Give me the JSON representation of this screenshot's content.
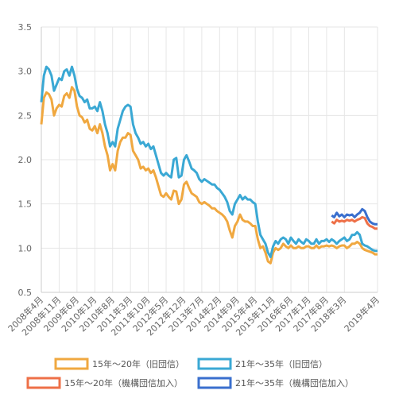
{
  "chart_data": {
    "type": "line",
    "categories": [
      "2008年4月",
      null,
      null,
      null,
      null,
      null,
      null,
      "2008年11月",
      null,
      null,
      null,
      null,
      null,
      null,
      "2009年6月",
      null,
      null,
      null,
      null,
      null,
      null,
      "2010年1月",
      null,
      null,
      null,
      null,
      null,
      null,
      "2010年8月",
      null,
      null,
      null,
      null,
      null,
      null,
      "2011年3月",
      null,
      null,
      null,
      null,
      null,
      null,
      "2011年10月",
      null,
      null,
      null,
      null,
      null,
      null,
      "2012年5月",
      null,
      null,
      null,
      null,
      null,
      null,
      "2012年12月",
      null,
      null,
      null,
      null,
      null,
      null,
      "2013年7月",
      null,
      null,
      null,
      null,
      null,
      null,
      "2014年2月",
      null,
      null,
      null,
      null,
      null,
      null,
      "2014年9月",
      null,
      null,
      null,
      null,
      null,
      null,
      "2015年4月",
      null,
      null,
      null,
      null,
      null,
      null,
      "2015年11月",
      null,
      null,
      null,
      null,
      null,
      null,
      "2016年6月",
      null,
      null,
      null,
      null,
      null,
      null,
      "2017年1月",
      null,
      null,
      null,
      null,
      null,
      null,
      "2017年8月",
      null,
      null,
      null,
      null,
      null,
      null,
      "2018年3月",
      null,
      null,
      null,
      null,
      null,
      null,
      null,
      null,
      null,
      null,
      null,
      null,
      "2019年4月"
    ],
    "series": [
      {
        "name": "15年～20年（旧団信）",
        "color": "#f0a840",
        "values": [
          2.4,
          2.7,
          2.76,
          2.74,
          2.68,
          2.5,
          2.58,
          2.62,
          2.6,
          2.72,
          2.75,
          2.7,
          2.82,
          2.78,
          2.6,
          2.5,
          2.48,
          2.42,
          2.45,
          2.35,
          2.33,
          2.38,
          2.3,
          2.4,
          2.3,
          2.15,
          2.05,
          1.88,
          1.95,
          1.88,
          2.1,
          2.2,
          2.25,
          2.25,
          2.3,
          2.28,
          2.1,
          2.05,
          2.0,
          1.9,
          1.92,
          1.88,
          1.9,
          1.85,
          1.88,
          1.8,
          1.7,
          1.6,
          1.58,
          1.62,
          1.58,
          1.55,
          1.65,
          1.64,
          1.5,
          1.55,
          1.72,
          1.75,
          1.68,
          1.62,
          1.6,
          1.58,
          1.52,
          1.5,
          1.52,
          1.5,
          1.48,
          1.45,
          1.45,
          1.42,
          1.4,
          1.38,
          1.35,
          1.3,
          1.2,
          1.12,
          1.25,
          1.3,
          1.38,
          1.32,
          1.3,
          1.3,
          1.28,
          1.25,
          1.25,
          1.1,
          1.0,
          1.02,
          0.95,
          0.85,
          0.83,
          0.95,
          1.0,
          0.98,
          1.0,
          1.05,
          1.02,
          1.0,
          1.03,
          1.0,
          1.0,
          1.02,
          1.0,
          1.0,
          1.02,
          1.02,
          1.0,
          1.0,
          1.03,
          1.0,
          1.02,
          1.02,
          1.03,
          1.02,
          1.03,
          1.02,
          1.0,
          1.02,
          1.03,
          1.03,
          1.0,
          1.02,
          1.05,
          1.05,
          1.07,
          1.05,
          1.0,
          0.98,
          0.97,
          0.96,
          0.95,
          0.93,
          0.93
        ]
      },
      {
        "name": "21年～35年（旧団信）",
        "color": "#3aa8d4",
        "values": [
          2.65,
          2.95,
          3.05,
          3.02,
          2.95,
          2.78,
          2.85,
          2.92,
          2.9,
          3.0,
          3.02,
          2.95,
          3.05,
          2.95,
          2.8,
          2.72,
          2.7,
          2.65,
          2.68,
          2.58,
          2.58,
          2.6,
          2.55,
          2.65,
          2.55,
          2.4,
          2.3,
          2.15,
          2.2,
          2.15,
          2.35,
          2.45,
          2.55,
          2.6,
          2.62,
          2.6,
          2.4,
          2.3,
          2.25,
          2.18,
          2.2,
          2.15,
          2.18,
          2.12,
          2.15,
          2.05,
          1.95,
          1.85,
          1.82,
          1.85,
          1.82,
          1.8,
          2.0,
          2.02,
          1.8,
          1.82,
          2.0,
          2.05,
          1.98,
          1.9,
          1.88,
          1.85,
          1.78,
          1.75,
          1.78,
          1.76,
          1.74,
          1.72,
          1.72,
          1.68,
          1.66,
          1.62,
          1.58,
          1.52,
          1.42,
          1.38,
          1.5,
          1.55,
          1.6,
          1.55,
          1.58,
          1.55,
          1.55,
          1.52,
          1.5,
          1.3,
          1.15,
          1.1,
          1.05,
          0.95,
          0.9,
          1.02,
          1.08,
          1.05,
          1.1,
          1.12,
          1.1,
          1.05,
          1.12,
          1.08,
          1.05,
          1.1,
          1.07,
          1.05,
          1.1,
          1.08,
          1.05,
          1.05,
          1.1,
          1.05,
          1.08,
          1.08,
          1.1,
          1.07,
          1.1,
          1.08,
          1.05,
          1.08,
          1.1,
          1.12,
          1.08,
          1.1,
          1.15,
          1.15,
          1.18,
          1.15,
          1.05,
          1.03,
          1.02,
          1.0,
          0.98,
          0.97,
          0.97
        ]
      },
      {
        "name": "15年～20年（機構団信加入）",
        "color": "#ee7048",
        "values": [
          null,
          null,
          null,
          null,
          null,
          null,
          null,
          null,
          null,
          null,
          null,
          null,
          null,
          null,
          null,
          null,
          null,
          null,
          null,
          null,
          null,
          null,
          null,
          null,
          null,
          null,
          null,
          null,
          null,
          null,
          null,
          null,
          null,
          null,
          null,
          null,
          null,
          null,
          null,
          null,
          null,
          null,
          null,
          null,
          null,
          null,
          null,
          null,
          null,
          null,
          null,
          null,
          null,
          null,
          null,
          null,
          null,
          null,
          null,
          null,
          null,
          null,
          null,
          null,
          null,
          null,
          null,
          null,
          null,
          null,
          null,
          null,
          null,
          null,
          null,
          null,
          null,
          null,
          null,
          null,
          null,
          null,
          null,
          null,
          null,
          null,
          null,
          null,
          null,
          null,
          null,
          null,
          null,
          null,
          null,
          null,
          null,
          null,
          null,
          null,
          null,
          null,
          null,
          null,
          null,
          null,
          null,
          null,
          null,
          null,
          null,
          null,
          null,
          null,
          1.3,
          1.28,
          1.32,
          1.3,
          1.31,
          1.3,
          1.32,
          1.31,
          1.32,
          1.3,
          1.32,
          1.33,
          1.35,
          1.34,
          1.28,
          1.25,
          1.24,
          1.22,
          1.22
        ]
      },
      {
        "name": "21年～35年（機構団信加入）",
        "color": "#3a6fce",
        "values": [
          null,
          null,
          null,
          null,
          null,
          null,
          null,
          null,
          null,
          null,
          null,
          null,
          null,
          null,
          null,
          null,
          null,
          null,
          null,
          null,
          null,
          null,
          null,
          null,
          null,
          null,
          null,
          null,
          null,
          null,
          null,
          null,
          null,
          null,
          null,
          null,
          null,
          null,
          null,
          null,
          null,
          null,
          null,
          null,
          null,
          null,
          null,
          null,
          null,
          null,
          null,
          null,
          null,
          null,
          null,
          null,
          null,
          null,
          null,
          null,
          null,
          null,
          null,
          null,
          null,
          null,
          null,
          null,
          null,
          null,
          null,
          null,
          null,
          null,
          null,
          null,
          null,
          null,
          null,
          null,
          null,
          null,
          null,
          null,
          null,
          null,
          null,
          null,
          null,
          null,
          null,
          null,
          null,
          null,
          null,
          null,
          null,
          null,
          null,
          null,
          null,
          null,
          null,
          null,
          null,
          null,
          null,
          null,
          null,
          null,
          null,
          null,
          null,
          null,
          1.37,
          1.35,
          1.4,
          1.36,
          1.38,
          1.35,
          1.38,
          1.37,
          1.38,
          1.35,
          1.38,
          1.4,
          1.44,
          1.42,
          1.35,
          1.3,
          1.28,
          1.27,
          1.27
        ]
      }
    ],
    "ylim": [
      0.5,
      3.5
    ],
    "yticks": [
      0.5,
      {
        "value": 1.0,
        "label": "1.0"
      },
      1.5,
      {
        "value": 2.0,
        "label": "2.0"
      },
      2.5,
      {
        "value": 3.0,
        "label": "3.0"
      },
      3.5
    ],
    "grid": true
  }
}
